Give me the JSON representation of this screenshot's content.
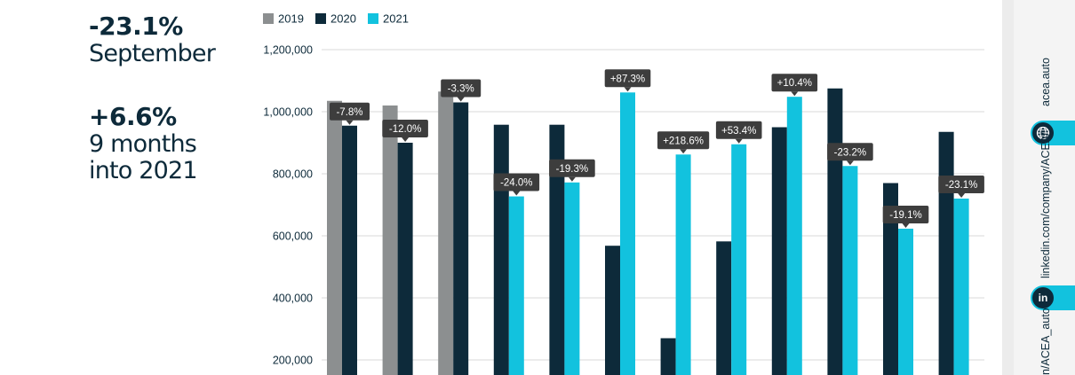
{
  "headline": {
    "stat1_value": "-23.1%",
    "stat1_label": "September",
    "stat2_value": "+6.6%",
    "stat2_label_line1": "9 months",
    "stat2_label_line2": "into 2021"
  },
  "sidebar": {
    "website": "acea.auto",
    "linkedin": "linkedin.com/company/ACEA/",
    "twitter_partial": "n/ACEA_auto",
    "linkedin_icon_text": "in"
  },
  "colors": {
    "2019": "#8c8f90",
    "2020": "#0d2a3a",
    "2021": "#12c2de",
    "callout": "#3d3d3d",
    "grid": "#d9d9d9"
  },
  "chart_data": {
    "type": "bar",
    "series": [
      {
        "name": "2019",
        "values": [
          1035000,
          1020000,
          1065000,
          null,
          null,
          null,
          null,
          null,
          null,
          null,
          null,
          null
        ]
      },
      {
        "name": "2020",
        "values": [
          955000,
          900000,
          1030000,
          958000,
          958000,
          568000,
          270000,
          582000,
          950000,
          1075000,
          770000,
          935000
        ]
      },
      {
        "name": "2021",
        "values": [
          null,
          null,
          null,
          727000,
          772000,
          1062000,
          862000,
          895000,
          1048000,
          825000,
          623000,
          720000
        ]
      }
    ],
    "annotations": [
      "-7.8%",
      "-12.0%",
      "-3.3%",
      "-24.0%",
      "-19.3%",
      "+87.3%",
      "+218.6%",
      "+53.4%",
      "+10.4%",
      "-23.2%",
      "-19.1%",
      "-23.1%"
    ],
    "y_ticks": [
      "200,000",
      "400,000",
      "600,000",
      "800,000",
      "1,000,000",
      "1,200,000"
    ],
    "ylim": [
      0,
      1200000
    ],
    "grid": true,
    "legend": "top-left"
  }
}
